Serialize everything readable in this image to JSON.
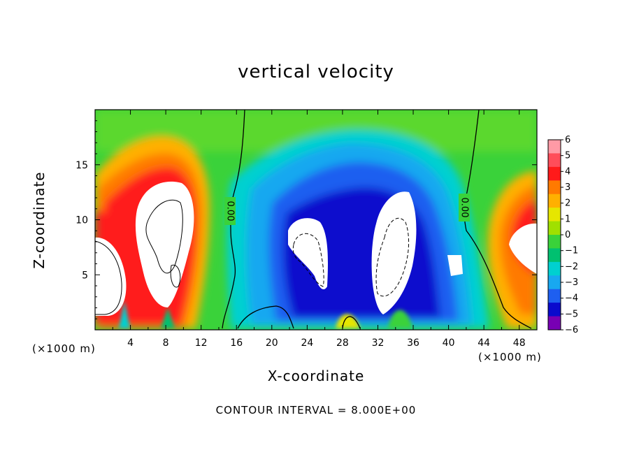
{
  "chart_data": {
    "type": "heatmap",
    "title": "vertical velocity",
    "xlabel": "X-coordinate",
    "ylabel": "Z-coordinate",
    "x_units": "(×1000 m)",
    "xlim": [
      0,
      50
    ],
    "ylim": [
      0,
      20
    ],
    "x_ticks": [
      4,
      8,
      12,
      16,
      20,
      24,
      28,
      32,
      36,
      40,
      44,
      48
    ],
    "y_ticks": [
      5,
      10,
      15
    ],
    "colorbar": {
      "levels": [
        6,
        5,
        4,
        3,
        2,
        1,
        0,
        -1,
        -2,
        -3,
        -4,
        -5,
        -6
      ],
      "colors": [
        "#ff9aa6",
        "#ff4d5a",
        "#ff1a1a",
        "#ff7a00",
        "#ffb000",
        "#e6e600",
        "#a0e000",
        "#3ad23a",
        "#00c070",
        "#00d0d0",
        "#18a8f0",
        "#1e5ff0",
        "#0a0acd",
        "#7800b4"
      ]
    },
    "contour_labels": [
      "0.00",
      "0.00"
    ],
    "contour_interval_text": "CONTOUR INTERVAL = 8.000E+00"
  }
}
